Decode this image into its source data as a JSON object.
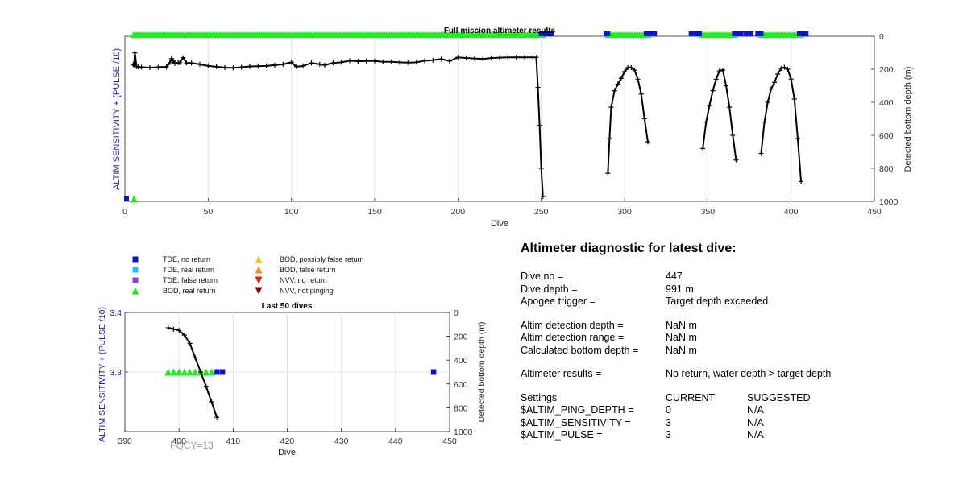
{
  "top_chart": {
    "title": "Full mission altimeter results",
    "xlabel": "Dive",
    "ylabel_left": "ALTIM SENSITIVITY + (PULSE /10)",
    "ylabel_right": "Detected bottom depth (m)",
    "xticks": [
      "0",
      "50",
      "100",
      "150",
      "200",
      "250",
      "300",
      "350",
      "400",
      "450"
    ],
    "yticks_right": [
      "0",
      "200",
      "400",
      "600",
      "800",
      "1000"
    ]
  },
  "bottom_chart": {
    "title": "Last 50 dives",
    "xlabel": "Dive",
    "ylabel_left": "ALTIM SENSITIVITY + (PULSE /10)",
    "ylabel_right": "Detected bottom depth (m)",
    "xticks": [
      "390",
      "400",
      "410",
      "420",
      "430",
      "440",
      "450"
    ],
    "yticks_left": [
      "3.4",
      "3.3"
    ],
    "yticks_right": [
      "0",
      "200",
      "400",
      "600",
      "800",
      "1000"
    ],
    "annotation": "FQCY=13"
  },
  "legend": [
    {
      "label": "TDE, no return",
      "color": "#0a14c8",
      "marker": "square"
    },
    {
      "label": "TDE, real return",
      "color": "#19c8f0",
      "marker": "square"
    },
    {
      "label": "TDE, false return",
      "color": "#8c3cc8",
      "marker": "square"
    },
    {
      "label": "BOD, real return",
      "color": "#28e628",
      "marker": "triangle-up"
    },
    {
      "label": "BOD, possibly false return",
      "color": "#f5c814",
      "marker": "triangle-up"
    },
    {
      "label": "BOD, false return",
      "color": "#f08c14",
      "marker": "triangle-up"
    },
    {
      "label": "NVV, no return",
      "color": "#e61e14",
      "marker": "triangle-down"
    },
    {
      "label": "NVV, not pinging",
      "color": "#780a0a",
      "marker": "triangle-down"
    }
  ],
  "diagnostic": {
    "title": "Altimeter diagnostic for latest dive:",
    "dive_no_label": "Dive no =",
    "dive_no": "447",
    "dive_depth_label": "Dive depth =",
    "dive_depth": "991 m",
    "apogee_label": "Apogee trigger =",
    "apogee": "Target depth exceeded",
    "det_depth_label": "Altim detection depth =",
    "det_depth": "NaN m",
    "det_range_label": "Altim detection range =",
    "det_range": "NaN m",
    "calc_depth_label": "Calculated bottom depth =",
    "calc_depth": "NaN m",
    "results_label": "Altimeter results =",
    "results": "No return, water depth > target depth",
    "settings_label": "Settings",
    "current_label": "CURRENT",
    "suggested_label": "SUGGESTED",
    "settings": [
      {
        "name": "$ALTIM_PING_DEPTH =",
        "current": "0",
        "suggested": "N/A"
      },
      {
        "name": "$ALTIM_SENSITIVITY =",
        "current": "3",
        "suggested": "N/A"
      },
      {
        "name": "$ALTIM_PULSE =",
        "current": "3",
        "suggested": "N/A"
      }
    ]
  },
  "chart_data": [
    {
      "type": "line",
      "title": "Full mission altimeter results",
      "xlabel": "Dive",
      "ylabel": "Detected bottom depth (m)",
      "xlim": [
        0,
        450
      ],
      "ylim_right": [
        0,
        1000
      ],
      "y_reversed": true,
      "grid": true,
      "series": [
        {
          "name": "",
          "x": [
            5,
            5.5,
            6,
            7,
            8,
            10,
            15,
            20,
            25,
            27,
            28,
            29,
            30,
            32,
            33,
            35,
            37,
            40,
            45,
            50,
            55,
            60,
            65,
            70,
            75,
            80,
            85,
            90,
            95,
            100,
            103,
            107,
            112,
            117,
            120,
            125,
            130,
            135,
            140,
            145,
            150,
            155,
            160,
            165,
            170,
            175,
            180,
            185,
            190,
            195,
            200,
            205,
            210,
            215,
            220,
            225,
            230,
            235,
            240,
            245,
            247,
            248,
            249,
            250,
            251
          ],
          "y": [
            170,
            175,
            100,
            185,
            185,
            188,
            190,
            188,
            185,
            160,
            135,
            150,
            165,
            160,
            160,
            130,
            162,
            162,
            170,
            180,
            185,
            190,
            192,
            188,
            183,
            182,
            180,
            175,
            170,
            158,
            185,
            180,
            162,
            170,
            175,
            162,
            158,
            148,
            152,
            150,
            150,
            155,
            155,
            158,
            160,
            158,
            148,
            145,
            138,
            150,
            128,
            132,
            135,
            138,
            132,
            130,
            128,
            128,
            128,
            128,
            128,
            310,
            540,
            800,
            970
          ]
        },
        {
          "name": "",
          "x": [
            290,
            291,
            292,
            294,
            296,
            298,
            300,
            302,
            304,
            306,
            308,
            310,
            312,
            314
          ],
          "y": [
            830,
            620,
            430,
            330,
            290,
            255,
            215,
            190,
            190,
            205,
            260,
            350,
            500,
            640
          ]
        },
        {
          "name": "",
          "x": [
            347,
            349,
            351,
            353,
            355,
            357,
            359,
            361,
            363,
            365,
            367
          ],
          "y": [
            680,
            520,
            420,
            330,
            260,
            210,
            205,
            300,
            430,
            600,
            750
          ]
        },
        {
          "name": "",
          "x": [
            382,
            384,
            386,
            388,
            390,
            392,
            394,
            396,
            398,
            400,
            402,
            404,
            406
          ],
          "y": [
            710,
            520,
            400,
            320,
            280,
            230,
            195,
            188,
            200,
            260,
            380,
            620,
            880
          ]
        }
      ],
      "markers": {
        "bod_real_return_x_ranges": [
          [
            5,
            251
          ],
          [
            290,
            314
          ],
          [
            346,
            366
          ],
          [
            382,
            406
          ]
        ],
        "tde_no_return_x_ranges": [
          [
            250,
            256
          ],
          [
            289,
            290
          ],
          [
            313,
            318
          ],
          [
            340,
            345
          ],
          [
            366,
            370
          ],
          [
            373,
            376
          ],
          [
            380,
            382
          ],
          [
            405,
            409
          ]
        ]
      }
    },
    {
      "type": "line",
      "title": "Last 50 dives",
      "xlabel": "Dive",
      "ylabel": "Detected bottom depth (m)",
      "xlim": [
        390,
        450
      ],
      "ylim_left": [
        3.2,
        3.4
      ],
      "ylim_right": [
        0,
        1000
      ],
      "y_reversed": true,
      "grid": true,
      "series": [
        {
          "name": "",
          "x": [
            398,
            399,
            400,
            401,
            402,
            403,
            404,
            405,
            406,
            407
          ],
          "y": [
            128,
            140,
            150,
            190,
            260,
            380,
            500,
            620,
            750,
            880
          ]
        }
      ],
      "markers": {
        "bod_real_return_x": [
          398,
          399,
          400,
          401,
          402,
          403,
          404,
          405,
          406
        ],
        "tde_no_return_x": [
          407,
          408,
          447
        ],
        "sensitivity_level": 3.3
      }
    }
  ]
}
